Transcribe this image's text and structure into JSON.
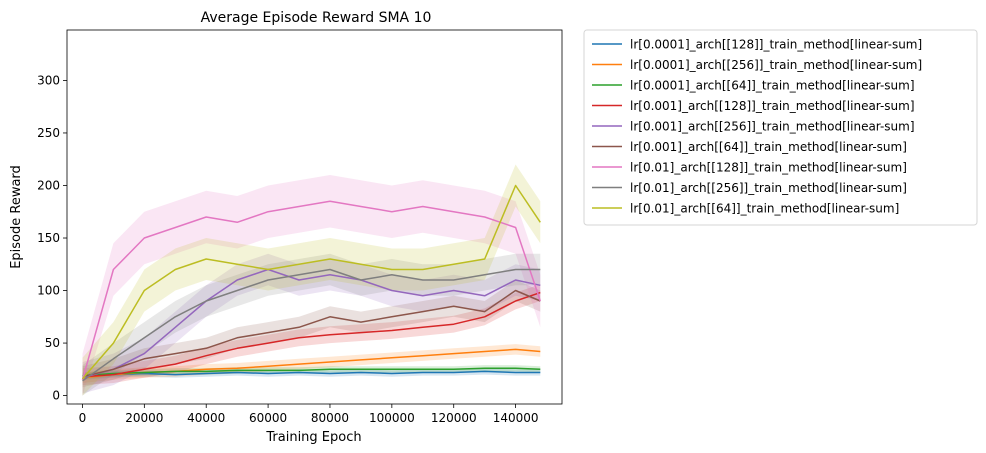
{
  "chart_data": {
    "type": "line",
    "title": "Average Episode Reward SMA 10",
    "xlabel": "Training Epoch",
    "ylabel": "Episode Reward",
    "xlim": [
      -5000,
      155000
    ],
    "ylim": [
      -8,
      348
    ],
    "xticks": [
      0,
      20000,
      40000,
      60000,
      80000,
      100000,
      120000,
      140000
    ],
    "yticks": [
      0,
      50,
      100,
      150,
      200,
      250,
      300
    ],
    "grid": false,
    "legend_position": "outside-right",
    "series": [
      {
        "name": "lr[0.0001]_arch[[128]]_train_method[linear-sum]",
        "color": "#1f77b4",
        "band": 3,
        "x": [
          0,
          10000,
          20000,
          30000,
          40000,
          50000,
          60000,
          70000,
          80000,
          90000,
          100000,
          110000,
          120000,
          130000,
          140000,
          148000
        ],
        "y": [
          18,
          20,
          21,
          20,
          21,
          22,
          21,
          22,
          21,
          22,
          21,
          22,
          22,
          23,
          22,
          22
        ]
      },
      {
        "name": "lr[0.0001]_arch[[256]]_train_method[linear-sum]",
        "color": "#ff7f0e",
        "band": 5,
        "x": [
          0,
          10000,
          20000,
          30000,
          40000,
          50000,
          60000,
          70000,
          80000,
          90000,
          100000,
          110000,
          120000,
          130000,
          140000,
          148000
        ],
        "y": [
          17,
          20,
          22,
          23,
          25,
          26,
          28,
          30,
          32,
          34,
          36,
          38,
          40,
          42,
          44,
          42
        ]
      },
      {
        "name": "lr[0.0001]_arch[[64]]_train_method[linear-sum]",
        "color": "#2ca02c",
        "band": 3,
        "x": [
          0,
          10000,
          20000,
          30000,
          40000,
          50000,
          60000,
          70000,
          80000,
          90000,
          100000,
          110000,
          120000,
          130000,
          140000,
          148000
        ],
        "y": [
          19,
          21,
          22,
          23,
          23,
          24,
          24,
          24,
          25,
          25,
          25,
          25,
          25,
          26,
          26,
          25
        ]
      },
      {
        "name": "lr[0.001]_arch[[128]]_train_method[linear-sum]",
        "color": "#d62728",
        "band": 8,
        "x": [
          0,
          10000,
          20000,
          30000,
          40000,
          50000,
          60000,
          70000,
          80000,
          90000,
          100000,
          110000,
          120000,
          130000,
          140000,
          148000
        ],
        "y": [
          18,
          20,
          25,
          30,
          38,
          45,
          50,
          55,
          58,
          60,
          62,
          65,
          68,
          75,
          90,
          98
        ]
      },
      {
        "name": "lr[0.001]_arch[[256]]_train_method[linear-sum]",
        "color": "#9467bd",
        "band": 15,
        "x": [
          0,
          10000,
          20000,
          30000,
          40000,
          50000,
          60000,
          70000,
          80000,
          90000,
          100000,
          110000,
          120000,
          130000,
          140000,
          148000
        ],
        "y": [
          17,
          25,
          40,
          65,
          90,
          110,
          120,
          110,
          115,
          110,
          100,
          95,
          100,
          95,
          110,
          105
        ]
      },
      {
        "name": "lr[0.001]_arch[[64]]_train_method[linear-sum]",
        "color": "#8c564b",
        "band": 10,
        "x": [
          0,
          10000,
          20000,
          30000,
          40000,
          50000,
          60000,
          70000,
          80000,
          90000,
          100000,
          110000,
          120000,
          130000,
          140000,
          148000
        ],
        "y": [
          18,
          25,
          35,
          40,
          45,
          55,
          60,
          65,
          75,
          70,
          75,
          80,
          85,
          80,
          100,
          90
        ]
      },
      {
        "name": "lr[0.01]_arch[[128]]_train_method[linear-sum]",
        "color": "#e377c2",
        "band": 25,
        "x": [
          0,
          10000,
          20000,
          30000,
          40000,
          50000,
          60000,
          70000,
          80000,
          90000,
          100000,
          110000,
          120000,
          130000,
          140000,
          148000
        ],
        "y": [
          15,
          120,
          150,
          160,
          170,
          165,
          175,
          180,
          185,
          180,
          175,
          180,
          175,
          170,
          160,
          90
        ]
      },
      {
        "name": "lr[0.01]_arch[[256]]_train_method[linear-sum]",
        "color": "#7f7f7f",
        "band": 15,
        "x": [
          0,
          10000,
          20000,
          30000,
          40000,
          50000,
          60000,
          70000,
          80000,
          90000,
          100000,
          110000,
          120000,
          130000,
          140000,
          148000
        ],
        "y": [
          14,
          35,
          55,
          75,
          90,
          100,
          110,
          115,
          120,
          110,
          115,
          110,
          110,
          115,
          120,
          120
        ]
      },
      {
        "name": "lr[0.01]_arch[[64]]_train_method[linear-sum]",
        "color": "#bcbd22",
        "band": 20,
        "x": [
          0,
          10000,
          20000,
          30000,
          40000,
          50000,
          60000,
          70000,
          80000,
          90000,
          100000,
          110000,
          120000,
          130000,
          140000,
          148000
        ],
        "y": [
          16,
          50,
          100,
          120,
          130,
          125,
          120,
          125,
          130,
          125,
          120,
          120,
          125,
          130,
          200,
          165
        ]
      }
    ]
  }
}
